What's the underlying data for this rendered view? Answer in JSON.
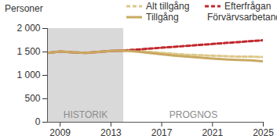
{
  "chart_data": {
    "type": "line",
    "y_label": "Personer",
    "x": [
      2008,
      2009,
      2010,
      2011,
      2012,
      2013,
      2014,
      2015,
      2016,
      2017,
      2018,
      2019,
      2020,
      2021,
      2022,
      2023,
      2024,
      2025
    ],
    "series": [
      {
        "name": "Förvärvsarbetande",
        "color": "#b5232b",
        "line_style": "solid",
        "values": [
          1480,
          1510,
          1490,
          1480,
          1500,
          1520,
          1530,
          null,
          null,
          null,
          null,
          null,
          null,
          null,
          null,
          null,
          null,
          null
        ]
      },
      {
        "name": "Alt tillgång",
        "color": "#ddc88a",
        "line_style": "dashed",
        "values": [
          null,
          null,
          null,
          null,
          null,
          null,
          1530,
          1520,
          1500,
          1480,
          1460,
          1440,
          1430,
          1420,
          1410,
          1400,
          1400,
          1390
        ]
      },
      {
        "name": "Efterfrågan",
        "color": "#c0282d",
        "line_style": "dashed",
        "values": [
          null,
          null,
          null,
          null,
          null,
          null,
          1530,
          1550,
          1570,
          1590,
          1610,
          1630,
          1650,
          1670,
          1690,
          1710,
          1730,
          1750
        ]
      },
      {
        "name": "Tillgång",
        "color": "#c9a961",
        "line_style": "solid",
        "values": [
          1480,
          1510,
          1490,
          1480,
          1500,
          1520,
          1530,
          1510,
          1480,
          1450,
          1420,
          1400,
          1380,
          1360,
          1340,
          1330,
          1320,
          1300
        ]
      }
    ],
    "legend_order": [
      "Alt tillgång",
      "Efterfrågan",
      "Tillgång",
      "Förvärvsarbetande"
    ],
    "shaded_region": {
      "x": [
        2008,
        2014
      ],
      "color": "#d9d9d9"
    },
    "annotations": [
      {
        "text": "HISTORIK",
        "x": 2011,
        "y": 150
      },
      {
        "text": "PROGNOS",
        "x": 2019.5,
        "y": 150
      }
    ],
    "xlim": [
      2008,
      2025
    ],
    "xticks": [
      2009,
      2013,
      2017,
      2021,
      2025
    ],
    "ylim": [
      0,
      2000
    ],
    "yticks": [
      0,
      500,
      {
        "value": 1000,
        "label": "1 000"
      },
      {
        "value": 1500,
        "label": "1 500"
      },
      {
        "value": 2000,
        "label": "2 000"
      }
    ],
    "grid": false
  }
}
